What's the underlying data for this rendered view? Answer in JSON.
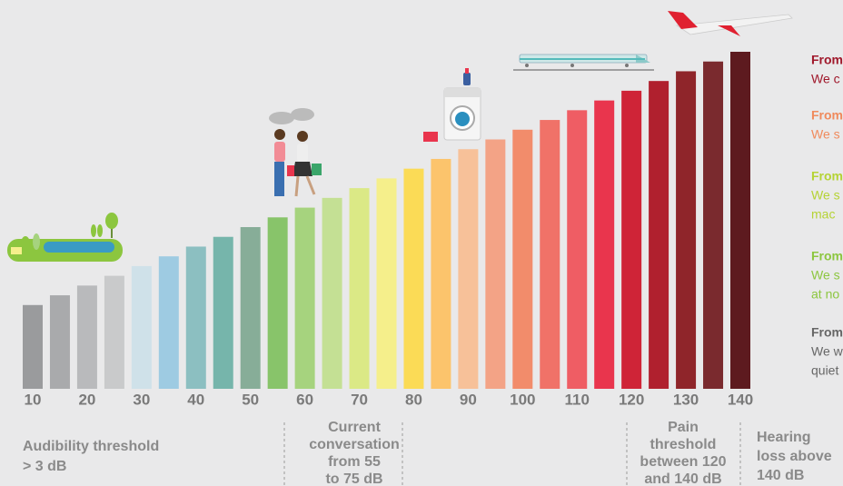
{
  "chart_data": {
    "type": "bar",
    "categories": [
      10,
      null,
      20,
      null,
      30,
      null,
      40,
      null,
      50,
      null,
      60,
      null,
      70,
      null,
      80,
      null,
      90,
      null,
      100,
      null,
      110,
      null,
      120,
      null,
      130,
      null,
      140
    ],
    "values": [
      10,
      15,
      20,
      25,
      30,
      35,
      40,
      45,
      50,
      55,
      60,
      65,
      70,
      75,
      80,
      85,
      90,
      95,
      100,
      105,
      110,
      115,
      120,
      125,
      130,
      135,
      140
    ],
    "colors": [
      "#9a9b9d",
      "#a9aaac",
      "#b9babc",
      "#c9cacb",
      "#cfe1e9",
      "#9ecbe2",
      "#8cbfc1",
      "#76b5ab",
      "#87ad98",
      "#88c46a",
      "#a6d37e",
      "#c4e094",
      "#dbe986",
      "#f5ef8b",
      "#fbdb56",
      "#fcc46c",
      "#f7c199",
      "#f3a386",
      "#f28c6b",
      "#f07268",
      "#ef5d64",
      "#e9354d",
      "#cf2437",
      "#b0202e",
      "#8f252a",
      "#7a2a2e",
      "#5d1a1f"
    ],
    "ylim": [
      -33,
      140
    ],
    "annotations": [
      {
        "lines": [
          "Audibility threshold",
          "> 3 dB"
        ]
      },
      {
        "lines": [
          "Current",
          "conversation",
          "from 55",
          "to 75 dB"
        ]
      },
      {
        "lines": [
          "Pain",
          "threshold",
          "between 120",
          "and 140 dB"
        ]
      },
      {
        "lines": [
          "Hearing",
          "loss above",
          "140 dB"
        ]
      }
    ],
    "legend_notes": [
      {
        "lines": [
          "From",
          "We c"
        ],
        "color": "#a0182b"
      },
      {
        "lines": [
          "From",
          "We s"
        ],
        "color": "#f08a5c"
      },
      {
        "lines": [
          "From",
          "We s",
          "mac"
        ],
        "color": "#b5d334"
      },
      {
        "lines": [
          "From",
          "We s",
          "at no"
        ],
        "color": "#8cc63f"
      },
      {
        "lines": [
          "From",
          "We w",
          "quiet"
        ],
        "color": "#666666"
      }
    ]
  }
}
